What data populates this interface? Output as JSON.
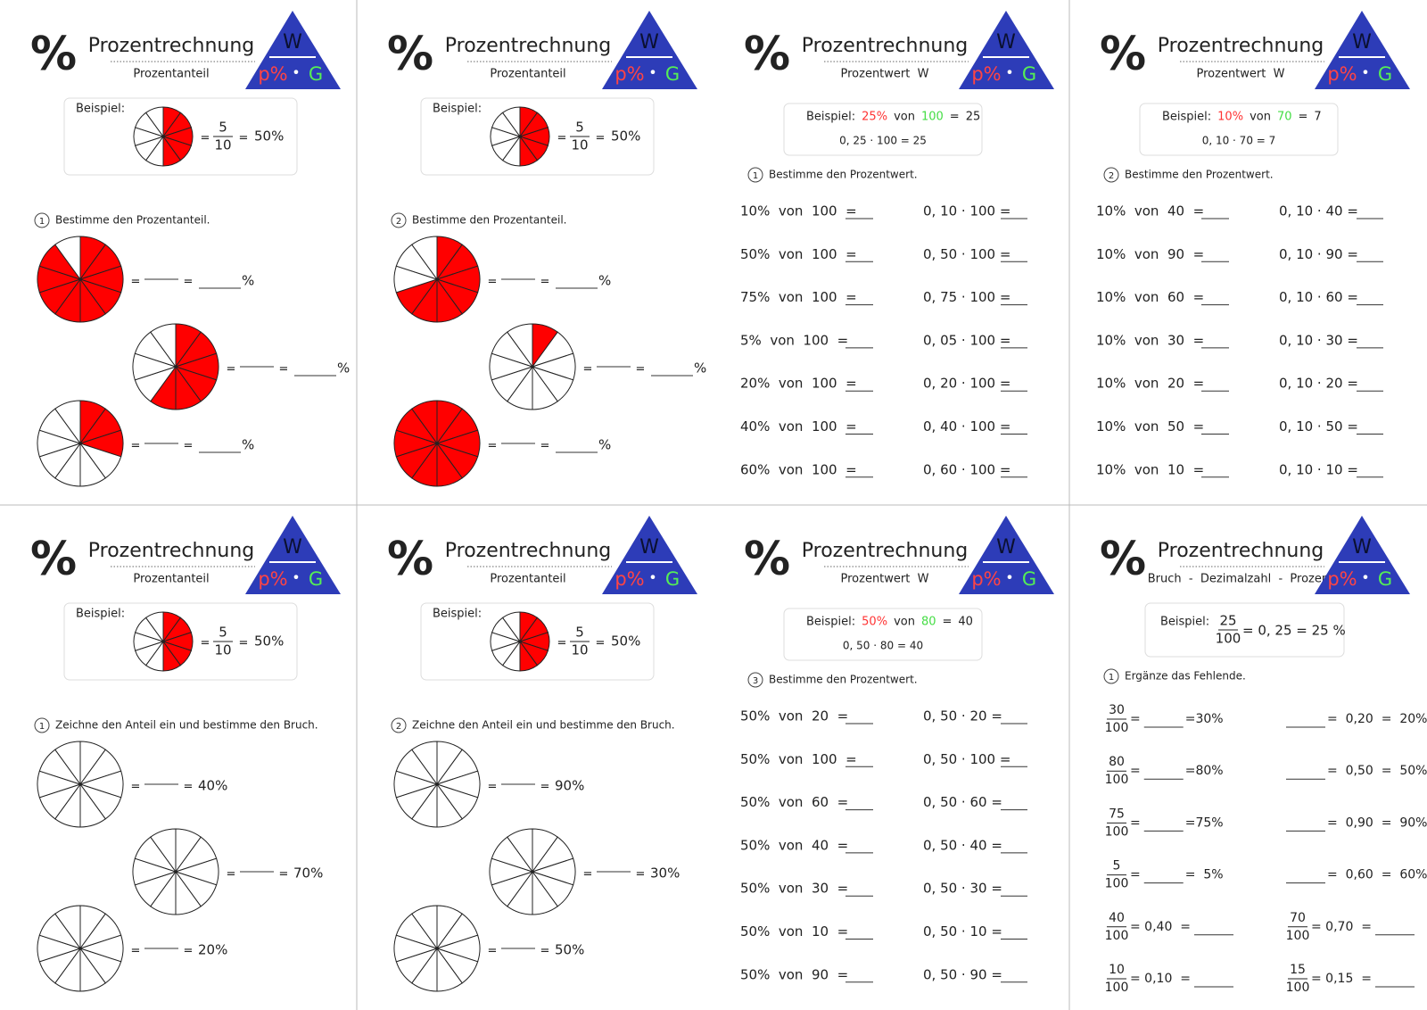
{
  "eq": "=",
  "cards": [
    {
      "kind": "percent-share",
      "percent_sign": "%",
      "title": "Prozentrechnung",
      "subtitle": "Prozentanteil",
      "triangle": {
        "w": "W",
        "p": "p%",
        "dot": "•",
        "g": "G"
      },
      "example": {
        "label": "Beispiel:",
        "filled": 5,
        "numerator": "5",
        "denominator": "10",
        "result": "50%"
      },
      "task": {
        "number": "1",
        "text": "Bestimme den Prozentanteil."
      },
      "pies": [
        {
          "filled": 9,
          "answer": "%"
        },
        {
          "filled": 6,
          "answer": "%"
        },
        {
          "filled": 3,
          "answer": "%"
        }
      ]
    },
    {
      "kind": "percent-share",
      "percent_sign": "%",
      "title": "Prozentrechnung",
      "subtitle": "Prozentanteil",
      "triangle": {
        "w": "W",
        "p": "p%",
        "dot": "•",
        "g": "G"
      },
      "example": {
        "label": "Beispiel:",
        "filled": 5,
        "numerator": "5",
        "denominator": "10",
        "result": "50%"
      },
      "task": {
        "number": "2",
        "text": "Bestimme den Prozentanteil."
      },
      "pies": [
        {
          "filled": 7,
          "answer": "%"
        },
        {
          "filled": 1,
          "answer": "%"
        },
        {
          "filled": 10,
          "answer": "%"
        }
      ]
    },
    {
      "kind": "percent-value",
      "percent_sign": "%",
      "title": "Prozentrechnung",
      "subtitle": "Prozentwert  W",
      "triangle": {
        "w": "W",
        "p": "p%",
        "dot": "•",
        "g": "G"
      },
      "example": {
        "label": "Beispiel:",
        "percent": "25%",
        "of": "von",
        "base": "100",
        "eq": "=",
        "value": "25",
        "calc": "0, 25 · 100 = 25"
      },
      "task": {
        "number": "1",
        "text": "Bestimme den Prozentwert."
      },
      "rows": [
        [
          "10%  von  100  =",
          "0, 10 · 100 ="
        ],
        [
          "50%  von  100  =",
          "0, 50 · 100 ="
        ],
        [
          "75%  von  100  =",
          "0, 75 · 100 ="
        ],
        [
          "5%  von  100  =",
          "0, 05 · 100 ="
        ],
        [
          "20%  von  100  =",
          "0, 20 · 100 ="
        ],
        [
          "40%  von  100  =",
          "0, 40 · 100 ="
        ],
        [
          "60%  von  100  =",
          "0, 60 · 100 ="
        ]
      ]
    },
    {
      "kind": "percent-value",
      "percent_sign": "%",
      "title": "Prozentrechnung",
      "subtitle": "Prozentwert  W",
      "triangle": {
        "w": "W",
        "p": "p%",
        "dot": "•",
        "g": "G"
      },
      "example": {
        "label": "Beispiel:",
        "percent": "10%",
        "of": "von",
        "base": "70",
        "eq": "=",
        "value": "7",
        "calc": "0, 10 · 70 = 7"
      },
      "task": {
        "number": "2",
        "text": "Bestimme den Prozentwert."
      },
      "rows": [
        [
          "10%  von  40  =",
          "0, 10 · 40 ="
        ],
        [
          "10%  von  90  =",
          "0, 10 · 90 ="
        ],
        [
          "10%  von  60  =",
          "0, 10 · 60 ="
        ],
        [
          "10%  von  30  =",
          "0, 10 · 30 ="
        ],
        [
          "10%  von  20  =",
          "0, 10 · 20 ="
        ],
        [
          "10%  von  50  =",
          "0, 10 · 50 ="
        ],
        [
          "10%  von  10  =",
          "0, 10 · 10 ="
        ]
      ]
    },
    {
      "kind": "percent-draw",
      "percent_sign": "%",
      "title": "Prozentrechnung",
      "subtitle": "Prozentanteil",
      "triangle": {
        "w": "W",
        "p": "p%",
        "dot": "•",
        "g": "G"
      },
      "example": {
        "label": "Beispiel:",
        "filled": 5,
        "numerator": "5",
        "denominator": "10",
        "result": "50%"
      },
      "task": {
        "number": "1",
        "text": "Zeichne den Anteil ein und bestimme den Bruch."
      },
      "pies": [
        {
          "filled": 0,
          "answer": "40%"
        },
        {
          "filled": 0,
          "answer": "70%"
        },
        {
          "filled": 0,
          "answer": "20%"
        }
      ]
    },
    {
      "kind": "percent-draw",
      "percent_sign": "%",
      "title": "Prozentrechnung",
      "subtitle": "Prozentanteil",
      "triangle": {
        "w": "W",
        "p": "p%",
        "dot": "•",
        "g": "G"
      },
      "example": {
        "label": "Beispiel:",
        "filled": 5,
        "numerator": "5",
        "denominator": "10",
        "result": "50%"
      },
      "task": {
        "number": "2",
        "text": "Zeichne den Anteil ein und bestimme den Bruch."
      },
      "pies": [
        {
          "filled": 0,
          "answer": "90%"
        },
        {
          "filled": 0,
          "answer": "30%"
        },
        {
          "filled": 0,
          "answer": "50%"
        }
      ]
    },
    {
      "kind": "percent-value",
      "percent_sign": "%",
      "title": "Prozentrechnung",
      "subtitle": "Prozentwert  W",
      "triangle": {
        "w": "W",
        "p": "p%",
        "dot": "•",
        "g": "G"
      },
      "example": {
        "label": "Beispiel:",
        "percent": "50%",
        "of": "von",
        "base": "80",
        "eq": "=",
        "value": "40",
        "calc": "0, 50 · 80 = 40"
      },
      "task": {
        "number": "3",
        "text": "Bestimme den Prozentwert."
      },
      "rows": [
        [
          "50%  von  20  =",
          "0, 50 · 20 ="
        ],
        [
          "50%  von  100  =",
          "0, 50 · 100 ="
        ],
        [
          "50%  von  60  =",
          "0, 50 · 60 ="
        ],
        [
          "50%  von  40  =",
          "0, 50 · 40 ="
        ],
        [
          "50%  von  30  =",
          "0, 50 · 30 ="
        ],
        [
          "50%  von  10  =",
          "0, 50 · 10 ="
        ],
        [
          "50%  von  90  =",
          "0, 50 · 90 ="
        ]
      ]
    },
    {
      "kind": "fraction-decimal",
      "percent_sign": "%",
      "title": "Prozentrechnung",
      "subtitle": "Bruch  -  Dezimalzahl  -  Prozent",
      "triangle": {
        "w": "W",
        "p": "p%",
        "dot": "•",
        "g": "G"
      },
      "example": {
        "label": "Beispiel:",
        "numerator": "25",
        "denominator": "100",
        "rest": "= 0, 25 = 25 %"
      },
      "task": {
        "number": "1",
        "text": "Ergänze das Fehlende."
      },
      "rows": [
        {
          "left": {
            "num": "30",
            "den": "100",
            "eq": "=",
            "result": "=30%"
          },
          "right": {
            "result": "=  0,20  =  20%"
          }
        },
        {
          "left": {
            "num": "80",
            "den": "100",
            "eq": "=",
            "result": "=80%"
          },
          "right": {
            "result": "=  0,50  =  50%"
          }
        },
        {
          "left": {
            "num": "75",
            "den": "100",
            "eq": "=",
            "result": "=75%"
          },
          "right": {
            "result": "=  0,90  =  90%"
          }
        },
        {
          "left": {
            "num": "5",
            "den": "100",
            "eq": "=",
            "result": "=  5%"
          },
          "right": {
            "result": "=  0,60  =  60%"
          }
        },
        {
          "left": {
            "num": "40",
            "den": "100",
            "eq": "= 0,40  ="
          },
          "right": {
            "num": "70",
            "den": "100",
            "eq": "= 0,70  ="
          }
        },
        {
          "left": {
            "num": "10",
            "den": "100",
            "eq": "= 0,10  ="
          },
          "right": {
            "num": "15",
            "den": "100",
            "eq": "= 0,15  ="
          }
        }
      ]
    }
  ]
}
